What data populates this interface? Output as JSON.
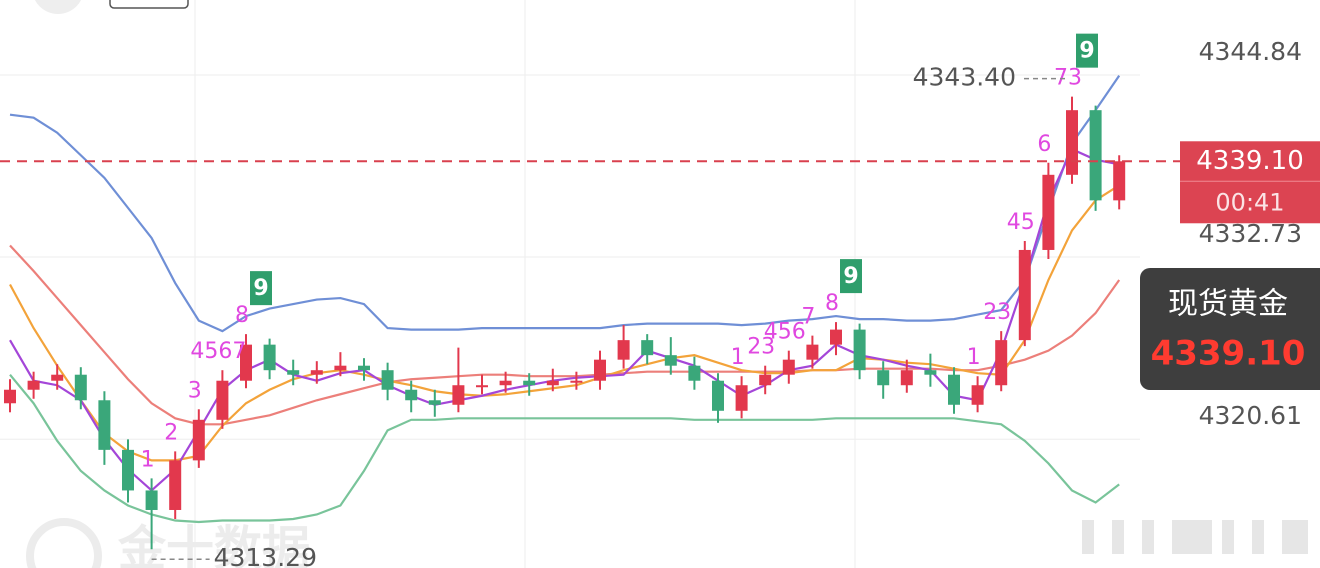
{
  "chart_data": {
    "type": "candlestick",
    "title": "现货黄金",
    "ylim": [
      4312.04,
      4349.83
    ],
    "yticks": [
      4344.84,
      4332.73,
      4320.61
    ],
    "grid": true,
    "up_color": "#e2384d",
    "down_color": "#3aa77a",
    "open": [
      4323.0,
      4323.9,
      4324.5,
      4324.9,
      4323.2,
      4319.9,
      4317.2,
      4315.9,
      4319.2,
      4321.9,
      4324.5,
      4326.9,
      4325.2,
      4324.9,
      4325.2,
      4325.5,
      4325.2,
      4323.9,
      4323.2,
      4322.9,
      4324.2,
      4324.2,
      4324.5,
      4324.2,
      4324.5,
      4324.5,
      4325.9,
      4327.2,
      4326.2,
      4325.5,
      4324.5,
      4322.5,
      4324.2,
      4324.9,
      4325.9,
      4326.9,
      4327.9,
      4325.2,
      4324.2,
      4325.2,
      4324.9,
      4322.9,
      4324.2,
      4327.2,
      4333.2,
      4338.2,
      4342.5,
      4336.5
    ],
    "high": [
      4324.6,
      4325.1,
      4325.6,
      4325.4,
      4323.8,
      4320.6,
      4318.0,
      4319.8,
      4322.6,
      4325.2,
      4327.6,
      4327.3,
      4325.9,
      4325.8,
      4326.4,
      4326.0,
      4325.7,
      4324.5,
      4323.9,
      4326.7,
      4324.9,
      4325.1,
      4325.0,
      4325.3,
      4325.1,
      4326.5,
      4328.2,
      4327.6,
      4327.4,
      4326.1,
      4325.0,
      4324.8,
      4325.5,
      4326.5,
      4327.5,
      4328.4,
      4328.3,
      4325.8,
      4325.9,
      4326.3,
      4325.4,
      4324.8,
      4327.8,
      4333.8,
      4339.0,
      4343.4,
      4342.8,
      4339.5
    ],
    "low": [
      4322.4,
      4323.3,
      4323.9,
      4322.6,
      4318.9,
      4316.4,
      4313.29,
      4315.3,
      4318.7,
      4321.3,
      4324.0,
      4324.6,
      4324.2,
      4324.3,
      4324.8,
      4324.5,
      4323.2,
      4322.4,
      4322.1,
      4322.4,
      4323.6,
      4323.7,
      4323.5,
      4323.8,
      4323.9,
      4323.9,
      4325.3,
      4325.6,
      4324.9,
      4323.9,
      4321.7,
      4322.0,
      4323.6,
      4324.3,
      4325.3,
      4326.2,
      4324.6,
      4323.3,
      4323.7,
      4324.1,
      4322.3,
      4322.4,
      4323.8,
      4326.8,
      4332.6,
      4337.6,
      4335.8,
      4335.9
    ],
    "close": [
      4323.9,
      4324.5,
      4324.9,
      4323.2,
      4319.9,
      4317.2,
      4315.9,
      4319.2,
      4321.9,
      4324.5,
      4326.9,
      4325.2,
      4324.9,
      4325.2,
      4325.5,
      4325.2,
      4323.9,
      4323.2,
      4322.9,
      4324.2,
      4324.2,
      4324.5,
      4324.2,
      4324.5,
      4324.5,
      4325.9,
      4327.2,
      4326.2,
      4325.5,
      4324.5,
      4322.5,
      4324.2,
      4324.9,
      4325.9,
      4326.9,
      4327.9,
      4325.2,
      4324.2,
      4325.2,
      4324.9,
      4322.9,
      4324.2,
      4327.2,
      4333.2,
      4338.2,
      4342.5,
      4336.5,
      4339.1
    ],
    "lines": [
      {
        "color": "#6f8fd6",
        "values": [
          4342.2,
          4342.0,
          4341.0,
          4339.5,
          4338.0,
          4336.0,
          4334.0,
          4331.0,
          4328.5,
          4327.8,
          4328.8,
          4329.3,
          4329.6,
          4329.9,
          4330.0,
          4329.6,
          4328.0,
          4327.9,
          4327.9,
          4327.9,
          4328.0,
          4328.0,
          4328.0,
          4328.0,
          4328.0,
          4328.0,
          4328.2,
          4328.3,
          4328.3,
          4328.3,
          4328.3,
          4328.2,
          4328.3,
          4328.5,
          4328.6,
          4328.8,
          4328.6,
          4328.6,
          4328.5,
          4328.5,
          4328.6,
          4328.9,
          4329.2,
          4331.2,
          4335.8,
          4340.3,
          4342.5,
          4344.8
        ]
      },
      {
        "color": "#79c49a",
        "values": [
          4324.9,
          4323.0,
          4320.5,
          4318.5,
          4317.2,
          4316.2,
          4315.6,
          4315.2,
          4315.1,
          4315.2,
          4315.2,
          4315.2,
          4315.3,
          4315.6,
          4316.2,
          4318.5,
          4321.2,
          4321.9,
          4321.9,
          4322.0,
          4322.0,
          4322.0,
          4322.0,
          4322.0,
          4322.0,
          4322.0,
          4322.0,
          4322.0,
          4322.0,
          4321.9,
          4321.9,
          4321.9,
          4321.9,
          4321.9,
          4321.9,
          4322.0,
          4322.0,
          4322.0,
          4322.0,
          4322.0,
          4322.0,
          4321.8,
          4321.6,
          4320.5,
          4319.0,
          4317.2,
          4316.4,
          4317.6
        ]
      },
      {
        "color": "#ec7f7a",
        "values": [
          4333.5,
          4331.8,
          4330.0,
          4328.2,
          4326.4,
          4324.6,
          4323.0,
          4322.0,
          4321.6,
          4321.6,
          4321.9,
          4322.2,
          4322.7,
          4323.2,
          4323.6,
          4324.0,
          4324.4,
          4324.6,
          4324.7,
          4324.8,
          4324.9,
          4324.9,
          4324.8,
          4324.8,
          4324.8,
          4324.9,
          4325.0,
          4325.1,
          4325.1,
          4325.1,
          4325.1,
          4325.1,
          4325.1,
          4325.1,
          4325.2,
          4325.2,
          4325.3,
          4325.3,
          4325.3,
          4325.3,
          4325.2,
          4325.2,
          4325.5,
          4325.9,
          4326.5,
          4327.5,
          4329.0,
          4331.2
        ]
      },
      {
        "color": "#f3a33a",
        "values": [
          4330.9,
          4328.0,
          4325.5,
          4323.2,
          4321.0,
          4319.8,
          4319.2,
          4319.2,
          4319.5,
          4321.5,
          4323.0,
          4323.9,
          4324.6,
          4325.0,
          4325.2,
          4324.9,
          4324.5,
          4324.2,
          4323.8,
          4323.6,
          4323.5,
          4323.6,
          4323.8,
          4324.0,
          4324.2,
          4324.7,
          4325.2,
          4325.6,
          4326.0,
          4326.2,
          4325.7,
          4325.2,
          4325.0,
          4325.0,
          4325.2,
          4325.2,
          4326.0,
          4325.9,
          4325.7,
          4325.6,
          4325.3,
          4325.0,
          4324.9,
          4327.2,
          4331.2,
          4334.5,
          4336.5,
          4337.5
        ]
      },
      {
        "color": "#a446d8",
        "values": [
          4327.2,
          4324.5,
          4324.2,
          4323.2,
          4320.6,
          4318.6,
          4317.2,
          4318.6,
          4321.2,
          4323.9,
          4325.2,
          4325.9,
          4324.9,
          4324.5,
          4325.0,
          4325.2,
          4324.2,
          4323.5,
          4322.9,
          4323.2,
          4323.5,
          4323.9,
          4324.2,
          4324.5,
          4324.7,
          4324.8,
          4324.9,
          4326.5,
          4326.0,
          4325.5,
          4324.5,
          4323.5,
          4324.2,
          4325.2,
          4325.5,
          4326.9,
          4326.2,
          4325.9,
          4325.5,
          4325.2,
          4323.5,
          4323.2,
          4326.5,
          4331.2,
          4336.5,
          4339.9,
          4339.2,
          4338.9
        ]
      }
    ],
    "td_color": "#e048e0",
    "td_nine_color": "#2f9e6c",
    "td_counts": [
      null,
      null,
      null,
      null,
      null,
      null,
      "1",
      "2",
      "3",
      "4567",
      "8",
      null,
      null,
      null,
      null,
      null,
      null,
      null,
      null,
      null,
      null,
      null,
      null,
      null,
      null,
      null,
      null,
      null,
      null,
      null,
      null,
      "1",
      "23",
      "456",
      "7",
      "8",
      null,
      null,
      null,
      null,
      null,
      "1",
      "23",
      "45",
      "6",
      "73",
      null,
      null
    ],
    "td_nines": [
      null,
      null,
      null,
      null,
      null,
      null,
      null,
      null,
      null,
      null,
      "9",
      null,
      null,
      null,
      null,
      null,
      null,
      null,
      null,
      null,
      null,
      null,
      null,
      null,
      null,
      null,
      null,
      null,
      null,
      null,
      null,
      null,
      null,
      null,
      null,
      "9",
      null,
      null,
      null,
      null,
      null,
      null,
      null,
      null,
      null,
      "9",
      null,
      null
    ],
    "high_marker": {
      "value": 4343.4,
      "label": "4343.40"
    },
    "low_marker": {
      "value": 4313.29,
      "label": "4313.29"
    },
    "last_price": {
      "value": 4339.1,
      "label": "4339.10"
    },
    "countdown": "00:41",
    "watermark": "金十数据"
  }
}
